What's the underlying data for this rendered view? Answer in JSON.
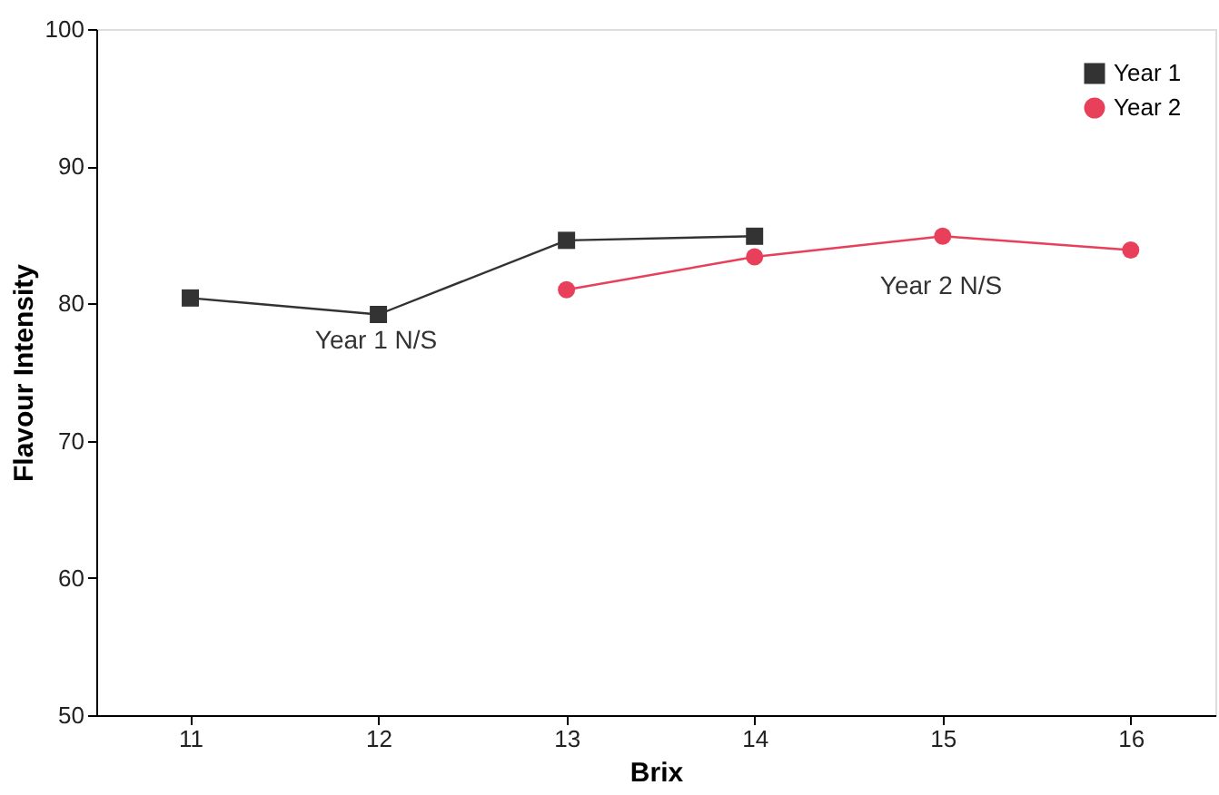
{
  "chart_data": {
    "type": "line",
    "xlabel": "Brix",
    "ylabel": "Flavour Intensity",
    "x": [
      11,
      12,
      13,
      14,
      15,
      16
    ],
    "series": [
      {
        "name": "Year 1",
        "color": "#333333",
        "marker": "square",
        "values": [
          80.4,
          79.2,
          84.6,
          84.9,
          null,
          null
        ]
      },
      {
        "name": "Year 2",
        "color": "#e8405a",
        "marker": "circle",
        "values": [
          null,
          null,
          81.0,
          83.4,
          84.9,
          83.9
        ]
      }
    ],
    "xlim": [
      10.5,
      16.45
    ],
    "xticks": [
      11,
      12,
      13,
      14,
      15,
      16
    ],
    "ylim": [
      50,
      100
    ],
    "yticks": [
      50,
      60,
      70,
      80,
      90,
      100
    ],
    "annotations": [
      "Year 1 N/S",
      "Year 2 N/S"
    ],
    "grid": false,
    "legend": "top right",
    "line_style": "solid"
  }
}
